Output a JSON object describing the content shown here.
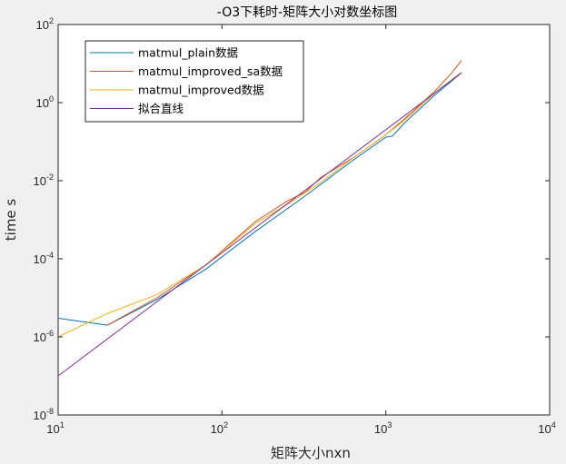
{
  "chart_data": {
    "type": "line",
    "title": "-O3下耗时-矩阵大小对数坐标图",
    "xlabel": "矩阵大小nxn",
    "ylabel": "time s",
    "xscale": "log",
    "yscale": "log",
    "xlim": [
      10,
      10000
    ],
    "ylim": [
      1e-08,
      100
    ],
    "grid": false,
    "legend_position": "top-left",
    "x_ticks": [
      {
        "base": "10",
        "exp": "1",
        "value": 10
      },
      {
        "base": "10",
        "exp": "2",
        "value": 100
      },
      {
        "base": "10",
        "exp": "3",
        "value": 1000
      },
      {
        "base": "10",
        "exp": "4",
        "value": 10000
      }
    ],
    "y_ticks": [
      {
        "base": "10",
        "exp": "-8",
        "value": 1e-08
      },
      {
        "base": "10",
        "exp": "-6",
        "value": 1e-06
      },
      {
        "base": "10",
        "exp": "-4",
        "value": 0.0001
      },
      {
        "base": "10",
        "exp": "-2",
        "value": 0.01
      },
      {
        "base": "10",
        "exp": "0",
        "value": 1
      },
      {
        "base": "10",
        "exp": "2",
        "value": 100
      }
    ],
    "series": [
      {
        "name": "matmul_plain数据",
        "color": "#0072BD",
        "points": [
          [
            10,
            3e-06
          ],
          [
            20,
            2e-06
          ],
          [
            40,
            9e-06
          ],
          [
            80,
            5.5e-05
          ],
          [
            160,
            0.0005
          ],
          [
            320,
            0.004
          ],
          [
            640,
            0.035
          ],
          [
            1000,
            0.13
          ],
          [
            1100,
            0.14
          ],
          [
            1300,
            0.3
          ],
          [
            2000,
            1.6
          ],
          [
            2900,
            5.8
          ]
        ]
      },
      {
        "name": "matmul_improved_sa数据",
        "color": "#D95319",
        "points": [
          [
            20,
            2e-06
          ],
          [
            40,
            1e-05
          ],
          [
            80,
            7e-05
          ],
          [
            160,
            0.0009
          ],
          [
            250,
            0.003
          ],
          [
            320,
            0.005
          ],
          [
            400,
            0.012
          ],
          [
            640,
            0.04
          ],
          [
            1000,
            0.15
          ],
          [
            1400,
            0.5
          ],
          [
            2000,
            2.0
          ],
          [
            2500,
            5.5
          ],
          [
            2900,
            12.0
          ]
        ]
      },
      {
        "name": "matmul_improved数据",
        "color": "#EDB120",
        "points": [
          [
            10,
            1e-06
          ],
          [
            20,
            4e-06
          ],
          [
            40,
            1.2e-05
          ],
          [
            80,
            7e-05
          ],
          [
            160,
            0.0008
          ],
          [
            270,
            0.003
          ],
          [
            400,
            0.009
          ],
          [
            640,
            0.04
          ],
          [
            1000,
            0.15
          ],
          [
            1300,
            0.35
          ],
          [
            2000,
            1.8
          ],
          [
            2900,
            6.0
          ]
        ]
      },
      {
        "name": "拟合直线",
        "color": "#7E2F8E",
        "points": [
          [
            10,
            1e-07
          ],
          [
            2900,
            5.8
          ]
        ]
      }
    ]
  }
}
